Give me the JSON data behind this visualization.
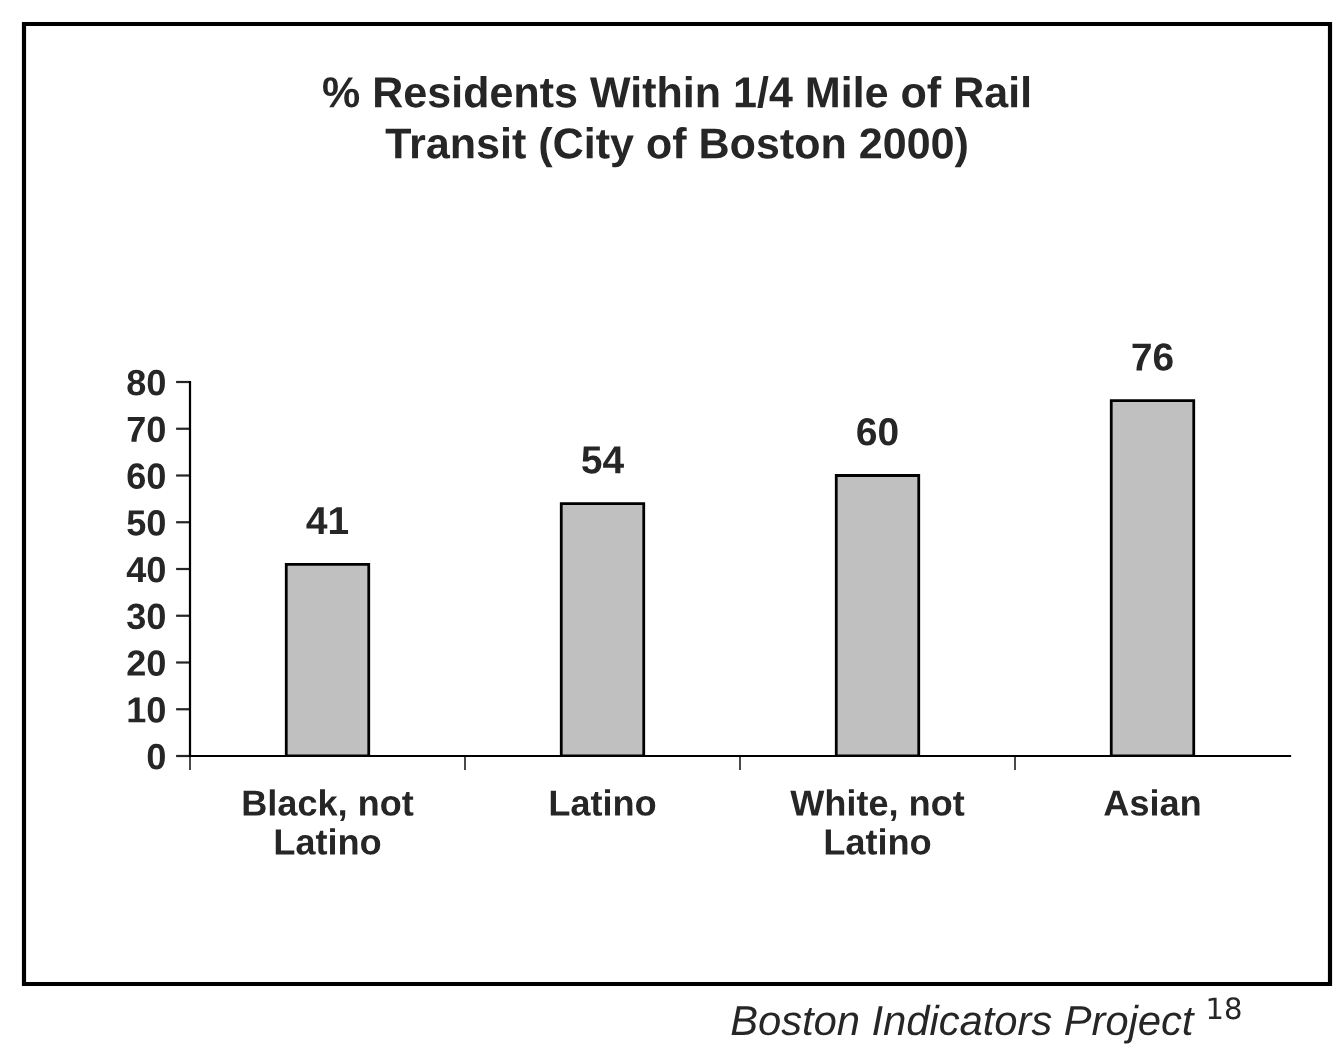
{
  "chart_data": {
    "type": "bar",
    "title": "% Residents Within 1/4 Mile of Rail\nTransit (City of Boston 2000)",
    "categories": [
      "Black, not\nLatino",
      "Latino",
      "White, not\nLatino",
      "Asian"
    ],
    "values": [
      41,
      54,
      60,
      76
    ],
    "color": "#c0c0c0",
    "ylim": [
      0,
      80
    ],
    "yticks": [
      0,
      10,
      20,
      30,
      40,
      50,
      60,
      70,
      80
    ],
    "data_labels": true,
    "grid": false,
    "legend": false,
    "annotations": [
      "Boston Indicators Project $^{18}$"
    ]
  }
}
